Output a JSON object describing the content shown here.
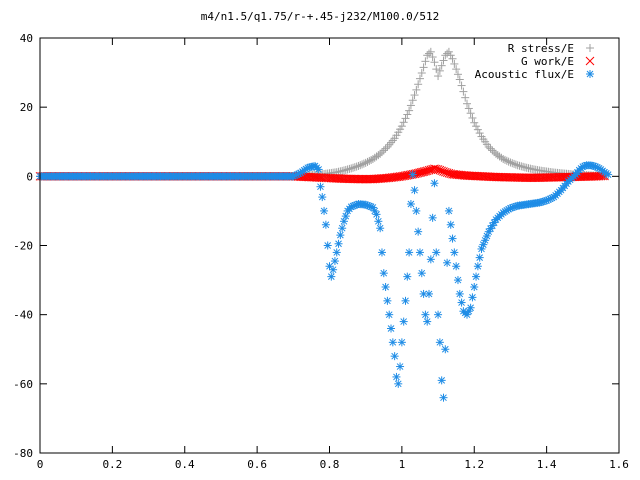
{
  "chart_data": {
    "type": "scatter",
    "title": "m4/n1.5/q1.75/r-+.45-j232/M100.0/512",
    "xlabel": "",
    "ylabel": "",
    "xlim": [
      0,
      1.6
    ],
    "ylim": [
      -80,
      40
    ],
    "x_ticks": [
      "0",
      "0.2",
      "0.4",
      "0.6",
      "0.8",
      "1",
      "1.2",
      "1.4",
      "1.6"
    ],
    "y_ticks": [
      "40",
      "20",
      "0",
      "-20",
      "-40",
      "-60",
      "-80"
    ],
    "grid": false,
    "legend_position": "top-right",
    "series": [
      {
        "name": "R stress/E",
        "marker": "+",
        "color": "#a0a0a0",
        "points": [
          [
            0.7,
            0
          ],
          [
            0.74,
            0.3
          ],
          [
            0.78,
            0.6
          ],
          [
            0.8,
            0.9
          ],
          [
            0.82,
            1.2
          ],
          [
            0.84,
            1.7
          ],
          [
            0.86,
            2.3
          ],
          [
            0.88,
            3.0
          ],
          [
            0.9,
            3.9
          ],
          [
            0.92,
            5.0
          ],
          [
            0.94,
            6.5
          ],
          [
            0.96,
            8.5
          ],
          [
            0.98,
            11.0
          ],
          [
            1.0,
            14.5
          ],
          [
            1.02,
            19.0
          ],
          [
            1.04,
            25.0
          ],
          [
            1.06,
            31.5
          ],
          [
            1.07,
            35.0
          ],
          [
            1.08,
            36.0
          ],
          [
            1.09,
            33.0
          ],
          [
            1.1,
            29.0
          ],
          [
            1.11,
            32.0
          ],
          [
            1.12,
            35.0
          ],
          [
            1.13,
            36.0
          ],
          [
            1.14,
            34.0
          ],
          [
            1.16,
            28.0
          ],
          [
            1.18,
            21.0
          ],
          [
            1.2,
            15.5
          ],
          [
            1.22,
            11.5
          ],
          [
            1.24,
            8.5
          ],
          [
            1.26,
            6.5
          ],
          [
            1.28,
            5.0
          ],
          [
            1.3,
            4.0
          ],
          [
            1.32,
            3.2
          ],
          [
            1.34,
            2.6
          ],
          [
            1.36,
            2.1
          ],
          [
            1.38,
            1.7
          ],
          [
            1.4,
            1.4
          ],
          [
            1.42,
            1.1
          ],
          [
            1.44,
            0.9
          ],
          [
            1.46,
            0.7
          ],
          [
            1.48,
            0.5
          ],
          [
            1.5,
            0.4
          ],
          [
            1.52,
            0.3
          ],
          [
            1.54,
            0.2
          ],
          [
            1.56,
            0.1
          ]
        ]
      },
      {
        "name": "G work/E",
        "marker": "x",
        "color": "#ff0000",
        "points": [
          [
            0.7,
            0
          ],
          [
            0.74,
            -0.2
          ],
          [
            0.78,
            -0.4
          ],
          [
            0.8,
            -0.5
          ],
          [
            0.84,
            -0.7
          ],
          [
            0.88,
            -0.8
          ],
          [
            0.92,
            -0.8
          ],
          [
            0.96,
            -0.5
          ],
          [
            1.0,
            0.0
          ],
          [
            1.04,
            0.8
          ],
          [
            1.07,
            1.6
          ],
          [
            1.09,
            2.2
          ],
          [
            1.1,
            2.0
          ],
          [
            1.12,
            1.2
          ],
          [
            1.14,
            0.6
          ],
          [
            1.18,
            0.2
          ],
          [
            1.22,
            0.0
          ],
          [
            1.26,
            -0.2
          ],
          [
            1.3,
            -0.3
          ],
          [
            1.34,
            -0.4
          ],
          [
            1.38,
            -0.4
          ],
          [
            1.42,
            -0.3
          ],
          [
            1.46,
            -0.2
          ],
          [
            1.5,
            -0.1
          ],
          [
            1.54,
            0.0
          ],
          [
            1.56,
            0.1
          ]
        ]
      },
      {
        "name": "Acoustic flux/E",
        "marker": "*",
        "color": "#1e8ce6",
        "points": [
          [
            0.7,
            0
          ],
          [
            0.72,
            1.0
          ],
          [
            0.74,
            2.5
          ],
          [
            0.76,
            3.0
          ],
          [
            0.77,
            2.0
          ],
          [
            0.775,
            -3.0
          ],
          [
            0.78,
            -6.0
          ],
          [
            0.785,
            -10.0
          ],
          [
            0.79,
            -14.0
          ],
          [
            0.795,
            -20.0
          ],
          [
            0.8,
            -26.0
          ],
          [
            0.805,
            -29.0
          ],
          [
            0.81,
            -27.0
          ],
          [
            0.82,
            -22.0
          ],
          [
            0.83,
            -17.0
          ],
          [
            0.84,
            -13.0
          ],
          [
            0.85,
            -10.0
          ],
          [
            0.86,
            -8.8
          ],
          [
            0.88,
            -8.0
          ],
          [
            0.9,
            -8.2
          ],
          [
            0.92,
            -9.0
          ],
          [
            0.93,
            -11.0
          ],
          [
            0.94,
            -15.0
          ],
          [
            0.945,
            -22.0
          ],
          [
            0.95,
            -28.0
          ],
          [
            0.96,
            -36.0
          ],
          [
            0.97,
            -44.0
          ],
          [
            0.98,
            -52.0
          ],
          [
            0.985,
            -58.0
          ],
          [
            0.99,
            -60.0
          ],
          [
            0.995,
            -55.0
          ],
          [
            1.0,
            -48.0
          ],
          [
            1.01,
            -36.0
          ],
          [
            1.02,
            -22.0
          ],
          [
            1.025,
            -8.0
          ],
          [
            1.03,
            0.5
          ],
          [
            1.035,
            -4.0
          ],
          [
            1.04,
            -10.0
          ],
          [
            1.045,
            -16.0
          ],
          [
            1.05,
            -22.0
          ],
          [
            1.055,
            -28.0
          ],
          [
            1.06,
            -34.0
          ],
          [
            1.065,
            -40.0
          ],
          [
            1.07,
            -42.0
          ],
          [
            1.075,
            -34.0
          ],
          [
            1.08,
            -24.0
          ],
          [
            1.085,
            -12.0
          ],
          [
            1.09,
            -2.0
          ],
          [
            1.095,
            -22.0
          ],
          [
            1.1,
            -40.0
          ],
          [
            1.105,
            -48.0
          ],
          [
            1.11,
            -59.0
          ],
          [
            1.115,
            -64.0
          ],
          [
            1.12,
            -50.0
          ],
          [
            1.125,
            -25.0
          ],
          [
            1.13,
            -10.0
          ],
          [
            1.14,
            -18.0
          ],
          [
            1.15,
            -26.0
          ],
          [
            1.16,
            -34.0
          ],
          [
            1.17,
            -39.0
          ],
          [
            1.18,
            -40.0
          ],
          [
            1.19,
            -38.0
          ],
          [
            1.2,
            -32.0
          ],
          [
            1.21,
            -26.0
          ],
          [
            1.22,
            -21.0
          ],
          [
            1.24,
            -16.0
          ],
          [
            1.26,
            -12.5
          ],
          [
            1.28,
            -10.5
          ],
          [
            1.3,
            -9.2
          ],
          [
            1.32,
            -8.5
          ],
          [
            1.34,
            -8.2
          ],
          [
            1.36,
            -7.9
          ],
          [
            1.38,
            -7.6
          ],
          [
            1.4,
            -7.0
          ],
          [
            1.42,
            -6.0
          ],
          [
            1.44,
            -4.0
          ],
          [
            1.46,
            -1.5
          ],
          [
            1.48,
            0.5
          ],
          [
            1.49,
            1.8
          ],
          [
            1.5,
            2.8
          ],
          [
            1.51,
            3.2
          ],
          [
            1.52,
            3.2
          ],
          [
            1.53,
            3.0
          ],
          [
            1.54,
            2.6
          ],
          [
            1.55,
            2.0
          ],
          [
            1.56,
            1.2
          ],
          [
            1.57,
            0.5
          ]
        ]
      }
    ]
  }
}
